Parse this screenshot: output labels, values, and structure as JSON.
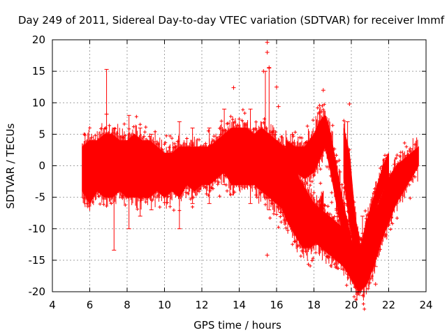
{
  "chart_data": {
    "type": "scatter",
    "title": "Day 249 of 2011, Sidereal Day-to-day VTEC variation (SDTVAR) for receiver lmmf",
    "xlabel": "GPS time / hours",
    "ylabel": "SDTVAR / TECUs",
    "xlim": [
      4,
      24
    ],
    "ylim": [
      -20,
      20
    ],
    "xticks": [
      4,
      6,
      8,
      10,
      12,
      14,
      16,
      18,
      20,
      22,
      24
    ],
    "yticks": [
      -20,
      -15,
      -10,
      -5,
      0,
      5,
      10,
      15,
      20
    ],
    "grid": true,
    "colors": {
      "series": "#ff0000",
      "grid": "#a0a0a0",
      "axis": "#000000"
    },
    "bands": [
      {
        "name": "main-band",
        "x": [
          5.6,
          6.0,
          6.4,
          6.8,
          7.2,
          7.6,
          8.0,
          8.4,
          8.8,
          9.2,
          9.6,
          10.0,
          10.4,
          10.8,
          11.2,
          11.6,
          12.0,
          12.4,
          12.8,
          13.2,
          13.6,
          14.0,
          14.4,
          14.8,
          15.2,
          15.6,
          16.0,
          16.4,
          16.8,
          17.2,
          17.6,
          18.0,
          18.4,
          18.8,
          19.2,
          19.6,
          20.0,
          20.4,
          20.8,
          21.2,
          21.6,
          22.0,
          22.4,
          22.8,
          23.2,
          23.6
        ],
        "low": [
          -4,
          -6,
          -4,
          -5,
          -5,
          -4,
          -5,
          -5,
          -5,
          -5,
          -4,
          -5,
          -4,
          -5,
          -3,
          -4,
          -3,
          -3,
          -2,
          -1,
          -3,
          -3,
          -3,
          -3,
          -4,
          -5,
          -6,
          -7,
          -8,
          -10,
          -11,
          -12,
          -13,
          -14,
          -15,
          -16,
          -18,
          -20,
          -19,
          -16,
          -12,
          -9,
          -6,
          -4,
          -2,
          0
        ],
        "high": [
          3,
          4,
          4,
          5,
          5,
          4,
          4,
          5,
          4,
          4,
          3,
          2,
          2,
          3,
          3,
          3,
          3,
          3,
          4,
          5,
          6,
          6,
          6,
          5,
          6,
          5,
          4,
          3,
          1,
          -2,
          -4,
          -6,
          -7,
          -8,
          -9,
          -10,
          -12,
          -13,
          -12,
          -8,
          -5,
          -2,
          0,
          1,
          2,
          3
        ]
      },
      {
        "name": "evening-lobe",
        "x": [
          15.8,
          16.2,
          16.6,
          17.0,
          17.4,
          17.8,
          18.2,
          18.5
        ],
        "low": [
          -4,
          -6,
          -9,
          -11,
          -13,
          -13,
          -12,
          -9
        ],
        "high": [
          0,
          -2,
          -5,
          -8,
          -10,
          -10,
          -8,
          -4
        ]
      },
      {
        "name": "upper-lobe",
        "x": [
          16.5,
          17.0,
          17.5,
          18.0,
          18.3,
          18.6,
          18.9,
          19.2,
          19.5,
          19.8,
          20.1,
          20.4
        ],
        "low": [
          1,
          -1,
          -2,
          -1,
          1,
          3,
          -1,
          -6,
          -10,
          -14,
          -17,
          -19
        ],
        "high": [
          4,
          3,
          3,
          5,
          7,
          8,
          5,
          0,
          -5,
          -9,
          -13,
          -16
        ]
      },
      {
        "name": "right-wedge",
        "x": [
          19.6,
          19.9,
          20.2,
          20.5,
          20.8,
          21.1,
          21.4,
          21.7,
          22.0
        ],
        "low": [
          -2,
          -9,
          -14,
          -18,
          -15,
          -10,
          -6,
          -4,
          -2
        ],
        "high": [
          6,
          2,
          -8,
          -13,
          -9,
          -6,
          -3,
          0,
          2
        ]
      }
    ],
    "spikes": [
      {
        "x": 5.8,
        "low": -4,
        "high": 3
      },
      {
        "x": 6.9,
        "low": -3,
        "high": 15.3
      },
      {
        "x": 7.3,
        "low": -13.4,
        "high": 6
      },
      {
        "x": 8.1,
        "low": -10,
        "high": 8
      },
      {
        "x": 8.7,
        "low": -8,
        "high": 6
      },
      {
        "x": 9.3,
        "low": -7,
        "high": 5
      },
      {
        "x": 10.8,
        "low": -10,
        "high": 7
      },
      {
        "x": 11.5,
        "low": -6,
        "high": 6
      },
      {
        "x": 12.4,
        "low": -6,
        "high": 6
      },
      {
        "x": 13.2,
        "low": -3,
        "high": 9
      },
      {
        "x": 14.6,
        "low": -6,
        "high": 9
      },
      {
        "x": 15.4,
        "low": -5,
        "high": 15
      },
      {
        "x": 15.6,
        "low": -7,
        "high": 15.5
      },
      {
        "x": 19.8,
        "low": -5,
        "high": 7
      },
      {
        "x": 20.6,
        "low": -14,
        "high": -8
      },
      {
        "x": 21.3,
        "low": -16,
        "high": -12
      }
    ],
    "outliers": [
      {
        "x": 15.5,
        "y": 19.6
      },
      {
        "x": 15.5,
        "y": 18.0
      },
      {
        "x": 15.6,
        "y": 15.6
      },
      {
        "x": 15.3,
        "y": 15.0
      },
      {
        "x": 16.0,
        "y": 12.5
      },
      {
        "x": 18.5,
        "y": 12.0
      },
      {
        "x": 15.5,
        "y": -14.2
      },
      {
        "x": 21.3,
        "y": -18.8
      },
      {
        "x": 19.9,
        "y": 9.8
      },
      {
        "x": 16.1,
        "y": 9.4
      },
      {
        "x": 13.7,
        "y": 12.4
      },
      {
        "x": 6.9,
        "y": 8.2
      }
    ]
  }
}
